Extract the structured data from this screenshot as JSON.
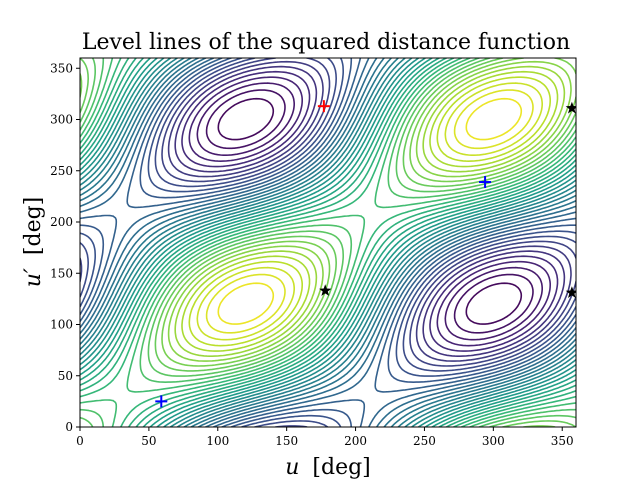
{
  "chart_data": {
    "type": "contour",
    "title": "Level lines of the squared distance function",
    "xlabel_symbol": "u",
    "xlabel_unit": "[deg]",
    "ylabel_symbol": "u′",
    "ylabel_unit": "[deg]",
    "xlim": [
      0,
      360
    ],
    "ylim": [
      0,
      360
    ],
    "xticks": [
      0,
      50,
      100,
      150,
      200,
      250,
      300,
      350
    ],
    "yticks": [
      0,
      50,
      100,
      150,
      200,
      250,
      300,
      350
    ],
    "grid": false,
    "colormap": "viridis",
    "markers": [
      {
        "kind": "plus",
        "color": "#ff0000",
        "x": 177,
        "y": 313
      },
      {
        "kind": "plus",
        "color": "#0000ff",
        "x": 294,
        "y": 239
      },
      {
        "kind": "plus",
        "color": "#0000ff",
        "x": 59,
        "y": 25
      },
      {
        "kind": "star",
        "color": "#000000",
        "x": 178,
        "y": 133
      },
      {
        "kind": "star",
        "color": "#000000",
        "x": 357,
        "y": 311
      },
      {
        "kind": "star",
        "color": "#000000",
        "x": 357,
        "y": 131
      }
    ]
  }
}
